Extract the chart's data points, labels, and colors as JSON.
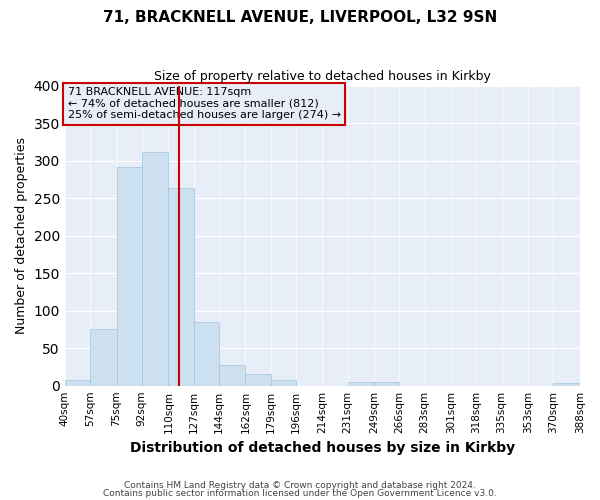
{
  "title1": "71, BRACKNELL AVENUE, LIVERPOOL, L32 9SN",
  "title2": "Size of property relative to detached houses in Kirkby",
  "xlabel": "Distribution of detached houses by size in Kirkby",
  "ylabel": "Number of detached properties",
  "bar_edges": [
    40,
    57,
    75,
    92,
    110,
    127,
    144,
    162,
    179,
    196,
    214,
    231,
    249,
    266,
    283,
    301,
    318,
    335,
    353,
    370,
    388
  ],
  "bar_heights": [
    8,
    76,
    291,
    312,
    263,
    85,
    28,
    16,
    8,
    0,
    0,
    5,
    5,
    0,
    0,
    0,
    0,
    0,
    0,
    3
  ],
  "bar_color": "#cce0f0",
  "bar_edgecolor": "#a0c4e0",
  "property_value": 117,
  "vline_color": "#cc0000",
  "annotation_box_edgecolor": "#cc0000",
  "annotation_text": "71 BRACKNELL AVENUE: 117sqm\n← 74% of detached houses are smaller (812)\n25% of semi-detached houses are larger (274) →",
  "ylim": [
    0,
    400
  ],
  "yticks": [
    0,
    50,
    100,
    150,
    200,
    250,
    300,
    350,
    400
  ],
  "tick_labels": [
    "40sqm",
    "57sqm",
    "75sqm",
    "92sqm",
    "110sqm",
    "127sqm",
    "144sqm",
    "162sqm",
    "179sqm",
    "196sqm",
    "214sqm",
    "231sqm",
    "249sqm",
    "266sqm",
    "283sqm",
    "301sqm",
    "318sqm",
    "335sqm",
    "353sqm",
    "370sqm",
    "388sqm"
  ],
  "footer1": "Contains HM Land Registry data © Crown copyright and database right 2024.",
  "footer2": "Contains public sector information licensed under the Open Government Licence v3.0.",
  "fig_background": "#ffffff",
  "axes_background": "#e8eef8",
  "grid_color": "#ffffff",
  "title1_fontsize": 11,
  "title2_fontsize": 9,
  "xlabel_fontsize": 10,
  "ylabel_fontsize": 9
}
